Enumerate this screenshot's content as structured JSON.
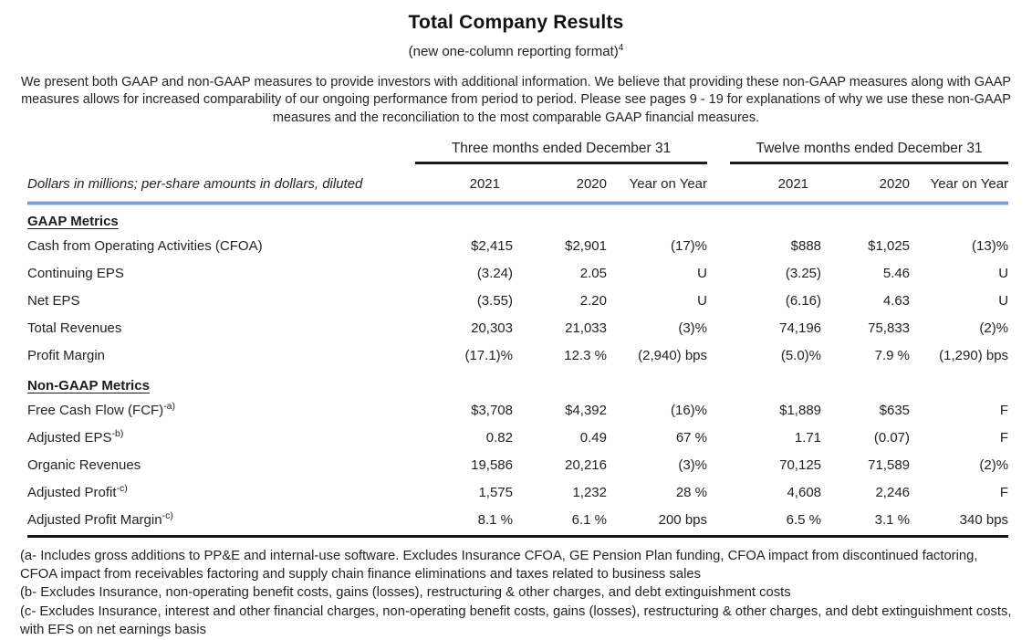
{
  "title": "Total Company Results",
  "subtitle": {
    "text": "(new one-column reporting format)",
    "sup": "4"
  },
  "intro": "We present both GAAP and non-GAAP measures to provide investors with additional information. We believe that providing these non-GAAP measures along with GAAP measures allows for increased comparability of our ongoing performance from period to period. Please see pages 9 - 19 for explanations of why we use these non-GAAP measures and the reconciliation to the most comparable GAAP financial measures.",
  "table": {
    "note": "Dollars in millions; per-share amounts in dollars, diluted",
    "groups": [
      "Three months ended December 31",
      "Twelve months ended December 31"
    ],
    "columns": [
      "2021",
      "2020",
      "Year on Year",
      "2021",
      "2020",
      "Year on Year"
    ],
    "sections": [
      {
        "heading": "GAAP Metrics",
        "rows": [
          {
            "label": "Cash from Operating Activities (CFOA)",
            "sup": "",
            "values": [
              "$2,415",
              "$2,901",
              "(17)%",
              "$888",
              "$1,025",
              "(13)%"
            ]
          },
          {
            "label": "Continuing EPS",
            "sup": "",
            "values": [
              "(3.24)",
              "2.05",
              "U",
              "(3.25)",
              "5.46",
              "U"
            ]
          },
          {
            "label": "Net EPS",
            "sup": "",
            "values": [
              "(3.55)",
              "2.20",
              "U",
              "(6.16)",
              "4.63",
              "U"
            ]
          },
          {
            "label": "Total Revenues",
            "sup": "",
            "values": [
              "20,303",
              "21,033",
              "(3)%",
              "74,196",
              "75,833",
              "(2)%"
            ]
          },
          {
            "label": "Profit Margin",
            "sup": "",
            "values": [
              "(17.1)%",
              "12.3 %",
              "(2,940) bps",
              "(5.0)%",
              "7.9 %",
              "(1,290) bps"
            ]
          }
        ]
      },
      {
        "heading": "Non-GAAP Metrics",
        "rows": [
          {
            "label": "Free Cash Flow (FCF)",
            "sup": "-a)",
            "values": [
              "$3,708",
              "$4,392",
              "(16)%",
              "$1,889",
              "$635",
              "F"
            ]
          },
          {
            "label": "Adjusted EPS",
            "sup": "-b)",
            "values": [
              "0.82",
              "0.49",
              "67 %",
              "1.71",
              "(0.07)",
              "F"
            ]
          },
          {
            "label": "Organic Revenues",
            "sup": "",
            "values": [
              "19,586",
              "20,216",
              "(3)%",
              "70,125",
              "71,589",
              "(2)%"
            ]
          },
          {
            "label": "Adjusted Profit",
            "sup": "-c)",
            "values": [
              "1,575",
              "1,232",
              "28 %",
              "4,608",
              "2,246",
              "F"
            ]
          },
          {
            "label": "Adjusted Profit Margin",
            "sup": "-c)",
            "values": [
              "8.1 %",
              "6.1 %",
              "200 bps",
              "6.5 %",
              "3.1 %",
              "340 bps"
            ]
          }
        ]
      }
    ]
  },
  "footnotes": [
    "(a- Includes gross additions to PP&E and internal-use software. Excludes Insurance CFOA, GE Pension Plan funding, CFOA impact from discontinued factoring, CFOA impact from receivables factoring and supply chain finance eliminations and taxes related to business sales",
    "(b- Excludes Insurance, non-operating benefit costs, gains (losses), restructuring & other charges, and debt extinguishment costs",
    "(c- Excludes Insurance, interest and other financial charges, non-operating benefit costs, gains (losses), restructuring & other charges, and debt extinguishment costs, with EFS on net earnings basis"
  ],
  "colors": {
    "text": "#232323",
    "rule_black": "#1a1a1a",
    "divider_blue": "#7b9cd0",
    "divider_blue_light": "#ccd9ec"
  }
}
